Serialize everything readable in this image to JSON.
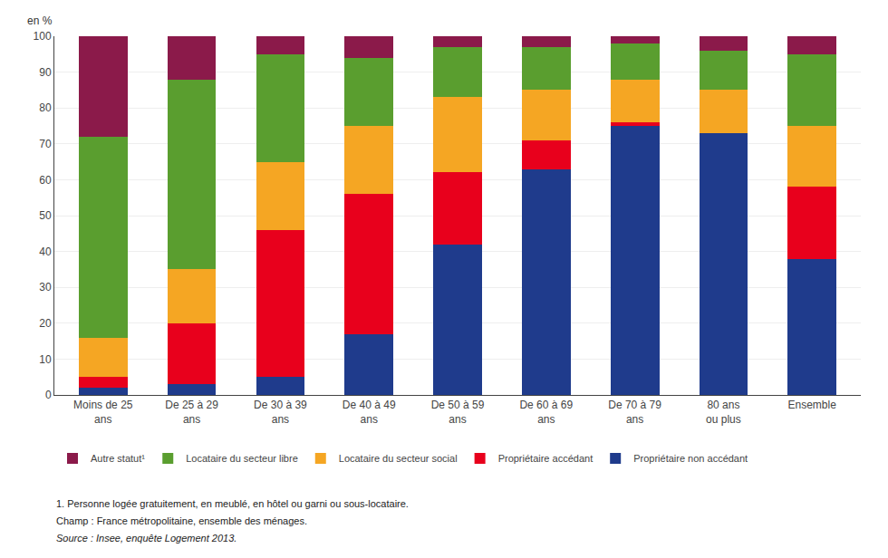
{
  "chart_data": {
    "type": "bar",
    "stacked": true,
    "ylabel": "en %",
    "categories": [
      "Moins de 25\nans",
      "De 25 à 29\nans",
      "De 30 à 39\nans",
      "De 40 à 49\nans",
      "De 50 à 59\nans",
      "De 60 à 69\nans",
      "De 70 à 79\nans",
      "80 ans\nou plus",
      "Ensemble"
    ],
    "series": [
      {
        "name": "Propriétaire non accédant",
        "color": "#1f3b8c",
        "values": [
          2,
          3,
          5,
          17,
          42,
          63,
          75,
          73,
          38
        ]
      },
      {
        "name": "Propriétaire accédant",
        "color": "#e8001c",
        "values": [
          3,
          17,
          41,
          39,
          20,
          8,
          1,
          0,
          20
        ]
      },
      {
        "name": "Locataire du secteur social",
        "color": "#f5a623",
        "values": [
          11,
          15,
          19,
          19,
          21,
          14,
          12,
          12,
          17
        ]
      },
      {
        "name": "Locataire du secteur libre",
        "color": "#5a9e2f",
        "values": [
          56,
          53,
          30,
          19,
          14,
          12,
          10,
          11,
          20
        ]
      },
      {
        "name": "Autre statut¹",
        "color": "#8b1a4a",
        "values": [
          28,
          12,
          5,
          6,
          3,
          3,
          2,
          4,
          5
        ]
      }
    ],
    "ylim": [
      0,
      100
    ],
    "yticks": [
      0,
      10,
      20,
      30,
      40,
      50,
      60,
      70,
      80,
      90,
      100
    ],
    "grid": true,
    "legend": "bottom",
    "annotations": [
      "1. Personne logée gratuitement, en meublé, en hôtel ou garni ou sous-locataire.",
      "Champ : France métropolitaine, ensemble des ménages.",
      "Source : Insee, enquête Logement 2013."
    ]
  }
}
